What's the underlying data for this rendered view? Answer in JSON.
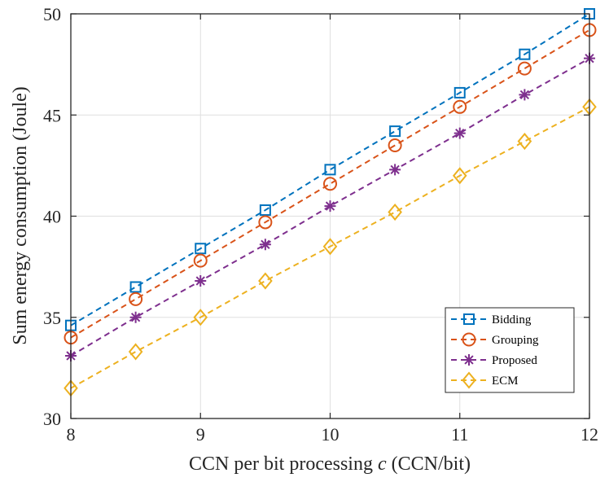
{
  "chart_data": {
    "type": "line",
    "title": "",
    "xlabel_prefix": "CCN per bit processing ",
    "xlabel_var": "c",
    "xlabel_suffix": " (CCN/bit)",
    "ylabel": "Sum energy consumption (Joule)",
    "x": [
      8,
      8.5,
      9,
      9.5,
      10,
      10.5,
      11,
      11.5,
      12
    ],
    "xlim": [
      8,
      12
    ],
    "ylim": [
      30,
      50
    ],
    "xticks": [
      8,
      9,
      10,
      11,
      12
    ],
    "yticks": [
      30,
      35,
      40,
      45,
      50
    ],
    "grid": true,
    "legend_position": "bottom-right",
    "series": [
      {
        "name": "Bidding",
        "color": "#0072BD",
        "marker": "square",
        "values": [
          34.6,
          36.5,
          38.4,
          40.3,
          42.3,
          44.2,
          46.1,
          48.0,
          50.0
        ]
      },
      {
        "name": "Grouping",
        "color": "#D95319",
        "marker": "circle",
        "values": [
          34.0,
          35.9,
          37.8,
          39.7,
          41.6,
          43.5,
          45.4,
          47.3,
          49.2
        ]
      },
      {
        "name": "Proposed",
        "color": "#7E2F8E",
        "marker": "asterisk",
        "values": [
          33.1,
          35.0,
          36.8,
          38.6,
          40.5,
          42.3,
          44.1,
          46.0,
          47.8
        ]
      },
      {
        "name": "ECM",
        "color": "#EDB120",
        "marker": "diamond",
        "values": [
          31.5,
          33.3,
          35.0,
          36.8,
          38.5,
          40.2,
          42.0,
          43.7,
          45.4
        ]
      }
    ]
  }
}
